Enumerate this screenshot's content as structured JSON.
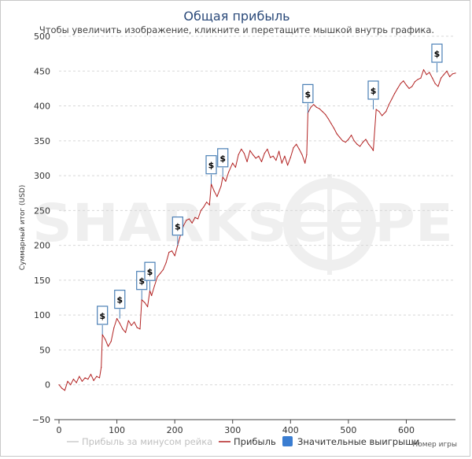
{
  "chart_data": {
    "type": "line",
    "title": "Общая прибыль",
    "subtitle": "Чтобы увеличить изображение, кликните и перетащите мышкой внутрь графика.",
    "ylabel": "Суммарный итог (USD)",
    "xlabel": "Номер игры",
    "xlim": [
      0,
      685
    ],
    "ylim": [
      -50,
      500
    ],
    "x_ticks": [
      "0",
      "100",
      "200",
      "300",
      "400",
      "500",
      "600"
    ],
    "y_ticks": [
      "−50",
      "0",
      "50",
      "100",
      "150",
      "200",
      "250",
      "300",
      "350",
      "400",
      "450",
      "500"
    ],
    "grid": "horizontal dashed",
    "legend_position": "bottom",
    "watermark": "SHARKSCOPE",
    "series": [
      {
        "name": "Прибыль",
        "color": "#b22222",
        "x": [
          0,
          5,
          10,
          15,
          20,
          25,
          30,
          35,
          40,
          45,
          50,
          55,
          60,
          65,
          70,
          73,
          75,
          80,
          85,
          90,
          95,
          100,
          105,
          110,
          115,
          120,
          125,
          130,
          135,
          140,
          143,
          148,
          153,
          157,
          160,
          165,
          170,
          175,
          180,
          185,
          190,
          195,
          200,
          205,
          210,
          215,
          220,
          225,
          230,
          235,
          240,
          245,
          250,
          255,
          260,
          263,
          268,
          273,
          280,
          283,
          288,
          293,
          300,
          305,
          310,
          315,
          320,
          325,
          330,
          335,
          340,
          345,
          350,
          355,
          360,
          365,
          370,
          375,
          380,
          385,
          390,
          395,
          400,
          405,
          410,
          415,
          420,
          425,
          428,
          430,
          435,
          440,
          445,
          450,
          455,
          460,
          465,
          470,
          475,
          480,
          485,
          490,
          495,
          500,
          505,
          510,
          515,
          520,
          525,
          530,
          535,
          540,
          543,
          548,
          553,
          558,
          565,
          570,
          575,
          580,
          585,
          590,
          595,
          600,
          605,
          610,
          615,
          620,
          625,
          630,
          635,
          640,
          645,
          650,
          655,
          660,
          665,
          670,
          675,
          680,
          685
        ],
        "values": [
          0,
          -5,
          -8,
          5,
          0,
          8,
          3,
          12,
          5,
          10,
          8,
          15,
          6,
          12,
          10,
          25,
          72,
          65,
          55,
          62,
          82,
          95,
          88,
          80,
          75,
          92,
          85,
          90,
          82,
          80,
          122,
          118,
          112,
          135,
          128,
          142,
          155,
          160,
          165,
          175,
          190,
          192,
          185,
          200,
          215,
          228,
          236,
          238,
          232,
          240,
          238,
          250,
          255,
          262,
          258,
          288,
          278,
          270,
          285,
          298,
          292,
          305,
          318,
          312,
          330,
          338,
          332,
          320,
          336,
          330,
          325,
          328,
          320,
          332,
          338,
          326,
          328,
          322,
          335,
          318,
          328,
          315,
          326,
          340,
          345,
          338,
          330,
          318,
          330,
          390,
          398,
          402,
          398,
          396,
          392,
          388,
          382,
          375,
          368,
          360,
          355,
          350,
          348,
          352,
          358,
          350,
          345,
          342,
          348,
          352,
          345,
          340,
          336,
          395,
          392,
          386,
          392,
          402,
          410,
          418,
          425,
          432,
          436,
          430,
          425,
          428,
          435,
          438,
          440,
          452,
          445,
          448,
          440,
          432,
          428,
          440,
          445,
          450,
          442,
          446,
          447
        ]
      },
      {
        "name": "Прибыль за минусом рейка",
        "color": "#cccccc",
        "values": []
      },
      {
        "name": "Значительные выигрыши",
        "color": "#3a7dd1",
        "markers": [
          {
            "x": 75,
            "y": 72,
            "label": "$"
          },
          {
            "x": 105,
            "y": 95,
            "label": "$"
          },
          {
            "x": 143,
            "y": 122,
            "label": "$"
          },
          {
            "x": 157,
            "y": 135,
            "label": "$"
          },
          {
            "x": 205,
            "y": 200,
            "label": "$"
          },
          {
            "x": 263,
            "y": 288,
            "label": "$"
          },
          {
            "x": 283,
            "y": 298,
            "label": "$"
          },
          {
            "x": 430,
            "y": 390,
            "label": "$"
          },
          {
            "x": 543,
            "y": 395,
            "label": "$"
          },
          {
            "x": 653,
            "y": 448,
            "label": "$"
          }
        ]
      }
    ]
  },
  "legend": [
    {
      "label": "Прибыль за минусом рейка",
      "color": "#cccccc",
      "muted": true
    },
    {
      "label": "Прибыль",
      "color": "#b22222",
      "muted": false
    },
    {
      "label": "Значительные выигрыши",
      "color": "#3a7dd1",
      "muted": false
    }
  ]
}
